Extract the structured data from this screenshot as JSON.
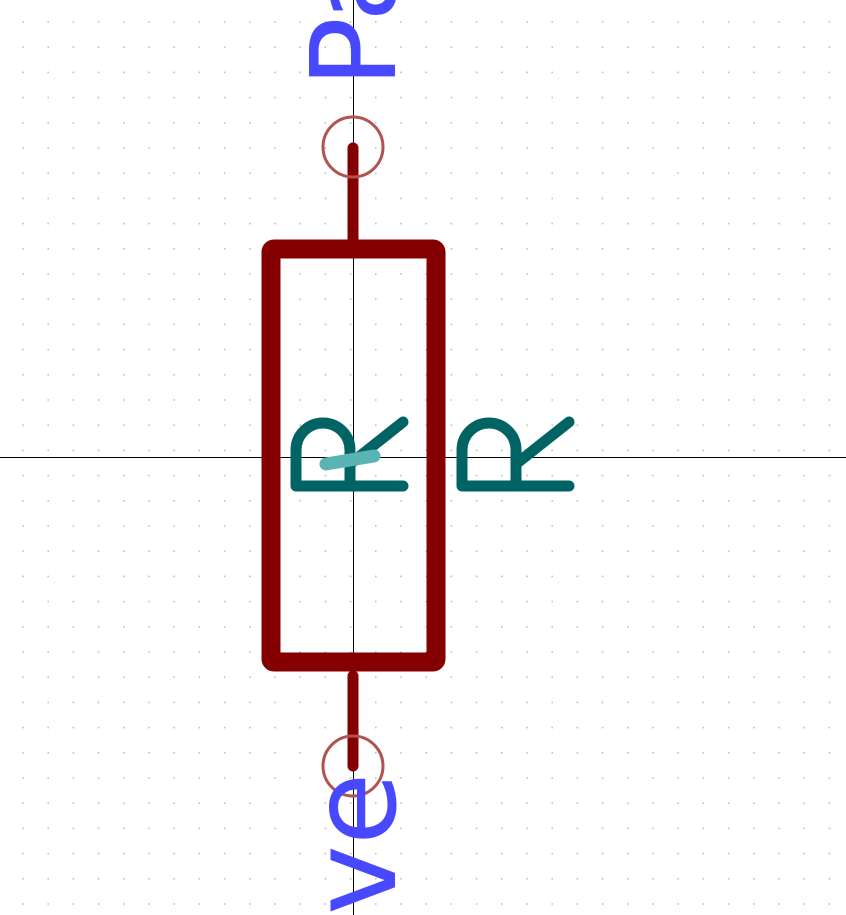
{
  "component": {
    "reference": "R",
    "value": "R",
    "pin_top_name": "Pa",
    "pin_bottom_name": "ve"
  },
  "colors": {
    "background": "#ffffff",
    "grid_dots": "#bdbdbd",
    "axis_lines": "#000000",
    "body_outline": "#840000",
    "pin_line": "#840000",
    "pin_circle": "#b25252",
    "reference_text": "#006464",
    "pin_name_text": "#4848ff",
    "anchor_mark": "#5ab4b4"
  }
}
